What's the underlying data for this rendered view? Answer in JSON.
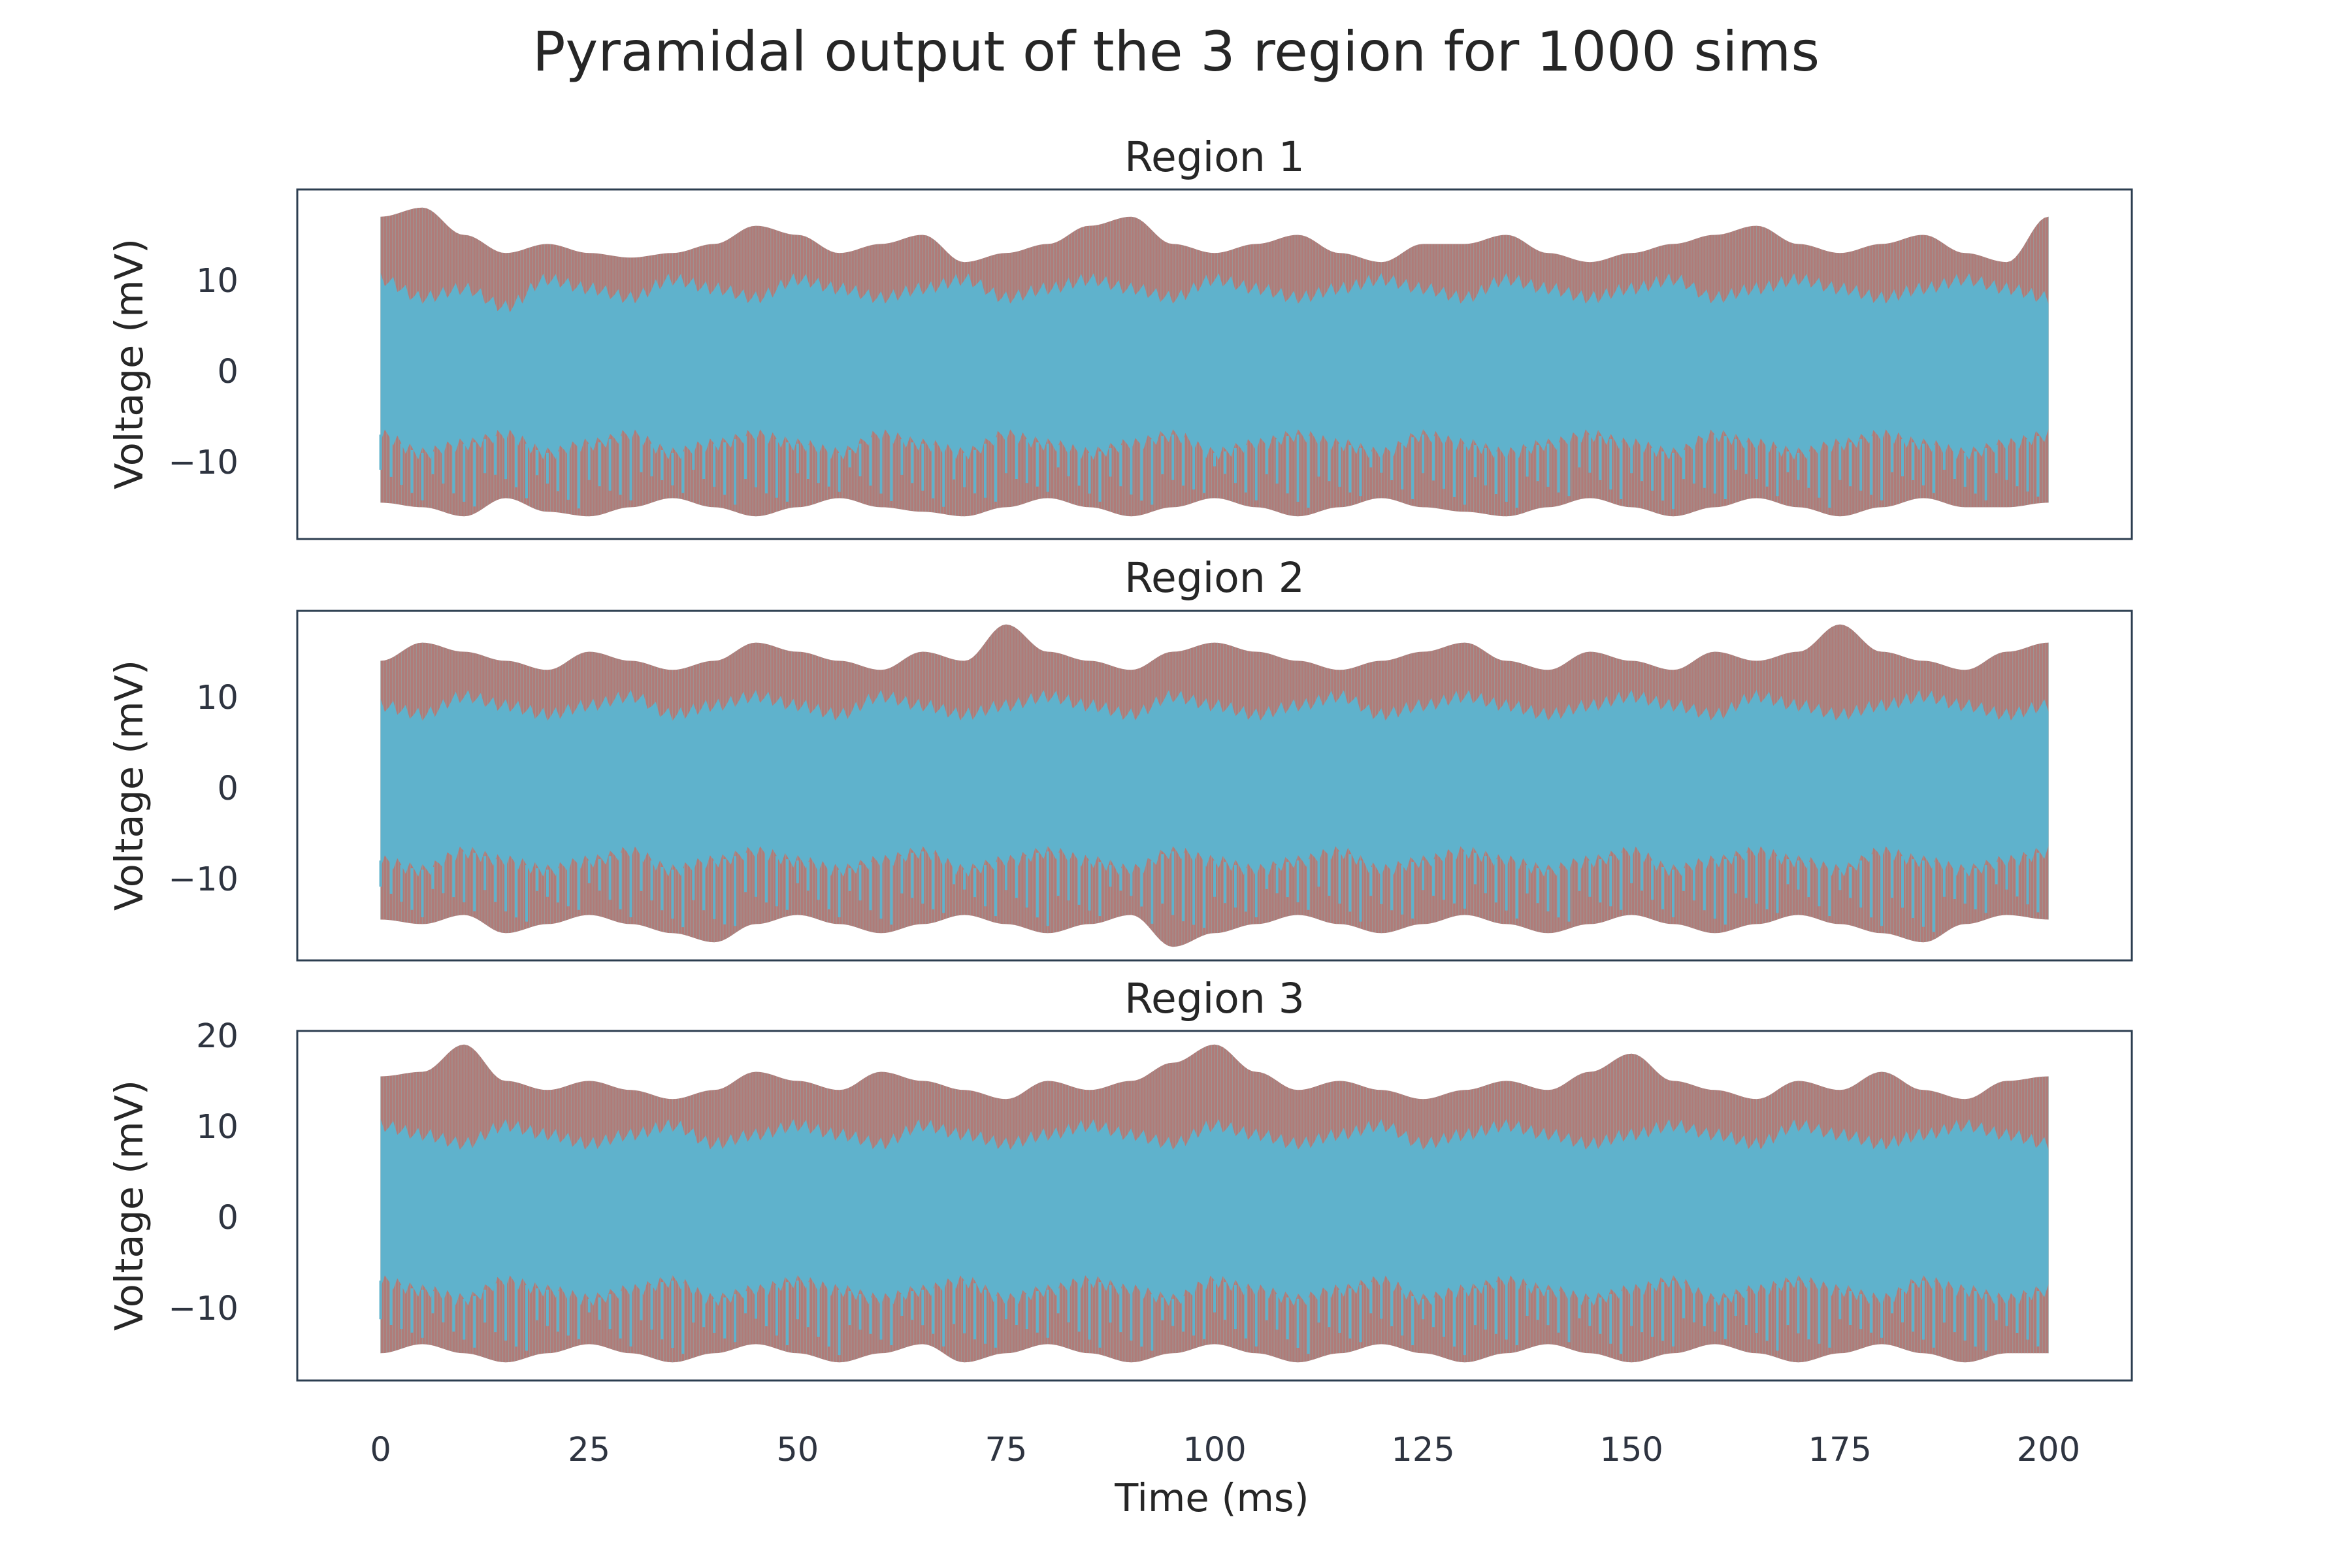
{
  "chart_data": {
    "type": "line",
    "title": "Pyramidal output of the 3 region for 1000 sims",
    "xlabel": "Time (ms)",
    "xlim": [
      -10,
      210
    ],
    "xticks": [
      0,
      25,
      50,
      75,
      100,
      125,
      150,
      175,
      200
    ],
    "grid": false,
    "legend": "none",
    "n_sims": 1000,
    "colors": {
      "trace_primary": "#5fb2cc",
      "trace_secondary": "#b07b78",
      "frame": "#2c3e50"
    },
    "subplots": [
      {
        "title": "Region 1",
        "ylabel": "Voltage (mV)",
        "ylim": [
          -18.5,
          20
        ],
        "yticks": [
          -10,
          0,
          10
        ],
        "ytick_labels": [
          "−10",
          "0",
          "10"
        ],
        "time_range": [
          0,
          200
        ],
        "upper_envelope_mV": [
          17,
          18,
          15,
          13,
          14,
          13,
          12.5,
          13,
          14,
          16,
          15,
          13,
          14,
          15,
          12,
          13,
          14,
          16,
          17,
          14,
          13,
          14,
          15,
          13,
          12,
          14,
          14,
          15,
          13,
          12,
          13,
          14,
          15,
          16,
          14,
          13,
          14,
          15,
          13,
          12,
          17
        ],
        "core_upper_mV": [
          10,
          8,
          9,
          7,
          10,
          9,
          8,
          10,
          9,
          8,
          10,
          9,
          8,
          9,
          10,
          8,
          9,
          10,
          9,
          8,
          10,
          9,
          8,
          9,
          10,
          9,
          8,
          10,
          9,
          8,
          9,
          10,
          8,
          9,
          10,
          9,
          8,
          9,
          10,
          9,
          8
        ],
        "core_lower_mV": [
          -7,
          -9,
          -8,
          -7,
          -9,
          -8,
          -7,
          -9,
          -8,
          -7,
          -8,
          -9,
          -7,
          -8,
          -9,
          -7,
          -8,
          -9,
          -8,
          -7,
          -9,
          -8,
          -7,
          -8,
          -9,
          -7,
          -8,
          -9,
          -8,
          -7,
          -8,
          -9,
          -7,
          -8,
          -9,
          -8,
          -7,
          -8,
          -9,
          -8,
          -7
        ],
        "lower_envelope_mV": [
          -14.5,
          -15,
          -16,
          -14,
          -15.5,
          -16,
          -15,
          -14,
          -15,
          -16,
          -15,
          -14,
          -15,
          -15.5,
          -16,
          -15,
          -14,
          -15,
          -16,
          -15,
          -14,
          -15,
          -16,
          -15,
          -14,
          -15,
          -15.5,
          -16,
          -15,
          -14,
          -15,
          -16,
          -15,
          -14,
          -15,
          -16,
          -15,
          -14,
          -15,
          -15,
          -14.5
        ]
      },
      {
        "title": "Region 2",
        "ylabel": "Voltage (mV)",
        "ylim": [
          -19,
          19.5
        ],
        "yticks": [
          -10,
          0,
          10
        ],
        "ytick_labels": [
          "−10",
          "0",
          "10"
        ],
        "time_range": [
          0,
          200
        ],
        "upper_envelope_mV": [
          14,
          16,
          15,
          14,
          13,
          15,
          14,
          13,
          14,
          16,
          15,
          14,
          13,
          15,
          14,
          18,
          15,
          14,
          13,
          15,
          16,
          15,
          14,
          13,
          14,
          15,
          16,
          14,
          13,
          15,
          14,
          13,
          15,
          14,
          15,
          18,
          15,
          14,
          13,
          15,
          16
        ],
        "core_upper_mV": [
          9,
          8,
          10,
          9,
          8,
          9,
          10,
          8,
          9,
          10,
          9,
          8,
          10,
          9,
          8,
          9,
          10,
          9,
          8,
          10,
          9,
          8,
          9,
          10,
          8,
          9,
          10,
          9,
          8,
          9,
          10,
          9,
          8,
          10,
          9,
          8,
          9,
          10,
          9,
          8,
          9
        ],
        "core_lower_mV": [
          -8,
          -9,
          -7,
          -8,
          -9,
          -8,
          -7,
          -9,
          -8,
          -7,
          -8,
          -9,
          -8,
          -7,
          -9,
          -8,
          -7,
          -8,
          -9,
          -7,
          -8,
          -9,
          -8,
          -7,
          -9,
          -8,
          -7,
          -8,
          -9,
          -8,
          -7,
          -9,
          -8,
          -7,
          -8,
          -9,
          -7,
          -8,
          -9,
          -8,
          -7
        ],
        "lower_envelope_mV": [
          -14.5,
          -15,
          -14,
          -16,
          -15,
          -14,
          -15,
          -16,
          -17,
          -15,
          -14,
          -15,
          -16,
          -15,
          -14,
          -15,
          -16,
          -15,
          -14,
          -17.5,
          -16,
          -15,
          -14,
          -15,
          -16,
          -15,
          -14,
          -15,
          -16,
          -15,
          -14,
          -15,
          -16,
          -15,
          -14,
          -15,
          -16,
          -17,
          -15,
          -14,
          -14.5
        ]
      },
      {
        "title": "Region 3",
        "ylabel": "Voltage (mV)",
        "ylim": [
          -18,
          20.5
        ],
        "yticks": [
          -10,
          0,
          10,
          20
        ],
        "ytick_labels": [
          "−10",
          "0",
          "10",
          "20"
        ],
        "time_range": [
          0,
          200
        ],
        "upper_envelope_mV": [
          15.5,
          16,
          19,
          15,
          14,
          15,
          14,
          13,
          14,
          16,
          15,
          14,
          16,
          15,
          14,
          13,
          15,
          14,
          15,
          17,
          19,
          16,
          14,
          15,
          14,
          13,
          14,
          15,
          14,
          16,
          18,
          15,
          14,
          13,
          15,
          14,
          16,
          14,
          13,
          15,
          15.5
        ],
        "core_upper_mV": [
          10,
          9,
          8,
          10,
          9,
          8,
          9,
          10,
          8,
          9,
          10,
          9,
          8,
          10,
          9,
          8,
          9,
          10,
          9,
          8,
          10,
          9,
          8,
          9,
          10,
          8,
          9,
          10,
          9,
          8,
          9,
          10,
          9,
          8,
          10,
          9,
          8,
          9,
          10,
          9,
          8
        ],
        "core_lower_mV": [
          -7,
          -8,
          -9,
          -7,
          -8,
          -9,
          -8,
          -7,
          -9,
          -8,
          -7,
          -8,
          -9,
          -8,
          -7,
          -9,
          -8,
          -7,
          -8,
          -9,
          -7,
          -8,
          -9,
          -8,
          -7,
          -9,
          -8,
          -7,
          -8,
          -9,
          -8,
          -7,
          -9,
          -8,
          -7,
          -8,
          -9,
          -7,
          -8,
          -9,
          -8
        ],
        "lower_envelope_mV": [
          -15,
          -14,
          -15,
          -16,
          -15,
          -14,
          -15,
          -16,
          -15,
          -14,
          -15,
          -16,
          -15,
          -14,
          -16,
          -15,
          -14,
          -15,
          -16,
          -15,
          -14,
          -15,
          -16,
          -15,
          -14,
          -15,
          -16,
          -15,
          -14,
          -15,
          -16,
          -15,
          -14,
          -15,
          -16,
          -15,
          -14,
          -15,
          -16,
          -15,
          -15
        ]
      }
    ]
  }
}
